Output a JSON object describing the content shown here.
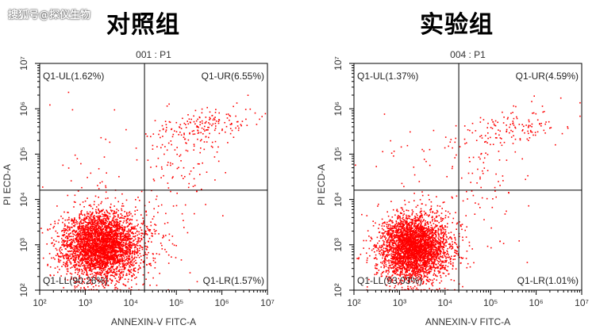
{
  "watermark": "搜狐号@探仪生物",
  "titles": {
    "left": "对照组",
    "right": "实验组"
  },
  "colors": {
    "dots": "#ff0000",
    "axis": "#000000",
    "gate": "#000000"
  },
  "chart_data": [
    {
      "type": "scatter",
      "title": "001 : P1",
      "group": "对照组",
      "xlabel": "ANNEXIN-V FITC-A",
      "ylabel": "PI ECD-A",
      "xscale": "log",
      "yscale": "log",
      "xlim": [
        100,
        10000000
      ],
      "ylim": [
        100,
        10000000
      ],
      "x_ticks": [
        "10²",
        "10³",
        "10⁴",
        "10⁵",
        "10⁶",
        "10⁷"
      ],
      "y_ticks": [
        "10²",
        "10³",
        "10⁴",
        "10⁵",
        "10⁶",
        "10⁷"
      ],
      "gate": {
        "x": 20000,
        "y": 16000
      },
      "quadrants": [
        {
          "name": "Q1-UL",
          "percent": 1.62,
          "label": "Q1-UL(1.62%)",
          "position": "top-left"
        },
        {
          "name": "Q1-UR",
          "percent": 6.55,
          "label": "Q1-UR(6.55%)",
          "position": "top-right"
        },
        {
          "name": "Q1-LL",
          "percent": 90.26,
          "label": "Q1-LL(90.26%)",
          "position": "bottom-left"
        },
        {
          "name": "Q1-LR",
          "percent": 1.57,
          "label": "Q1-LR(1.57%)",
          "position": "bottom-right"
        }
      ],
      "clusters": [
        {
          "region": "main-population",
          "center_log": [
            3.35,
            3.0
          ],
          "spread_log": [
            0.42,
            0.38
          ],
          "points": 3600
        },
        {
          "region": "late-apoptotic-band",
          "center_log": [
            5.6,
            5.65
          ],
          "spread_log": [
            0.55,
            0.18
          ],
          "points": 170
        },
        {
          "region": "upper-right-diffuse",
          "center_log": [
            5.1,
            4.8
          ],
          "spread_log": [
            0.5,
            0.5
          ],
          "points": 90
        },
        {
          "region": "upper-left",
          "center_log": [
            3.2,
            4.8
          ],
          "spread_log": [
            0.5,
            0.7
          ],
          "points": 30
        },
        {
          "region": "lower-right",
          "center_log": [
            4.7,
            3.2
          ],
          "spread_log": [
            0.4,
            0.5
          ],
          "points": 60
        }
      ],
      "seed": 11
    },
    {
      "type": "scatter",
      "title": "004 : P1",
      "group": "实验组",
      "xlabel": "ANNEXIN-V FITC-A",
      "ylabel": "PI ECD-A",
      "xscale": "log",
      "yscale": "log",
      "xlim": [
        100,
        10000000
      ],
      "ylim": [
        100,
        10000000
      ],
      "x_ticks": [
        "10²",
        "10³",
        "10⁴",
        "10⁵",
        "10⁶",
        "10⁷"
      ],
      "y_ticks": [
        "10²",
        "10³",
        "10⁴",
        "10⁵",
        "10⁶",
        "10⁷"
      ],
      "gate": {
        "x": 20000,
        "y": 16000
      },
      "quadrants": [
        {
          "name": "Q1-UL",
          "percent": 1.37,
          "label": "Q1-UL(1.37%)",
          "position": "top-left"
        },
        {
          "name": "Q1-UR",
          "percent": 4.59,
          "label": "Q1-UR(4.59%)",
          "position": "top-right"
        },
        {
          "name": "Q1-LL",
          "percent": 93.03,
          "label": "Q1-LL(93.03%)",
          "position": "bottom-left"
        },
        {
          "name": "Q1-LR",
          "percent": 1.01,
          "label": "Q1-LR(1.01%)",
          "position": "bottom-right"
        }
      ],
      "clusters": [
        {
          "region": "main-population",
          "center_log": [
            3.3,
            2.95
          ],
          "spread_log": [
            0.38,
            0.36
          ],
          "points": 3400
        },
        {
          "region": "late-apoptotic-band",
          "center_log": [
            5.4,
            5.6
          ],
          "spread_log": [
            0.6,
            0.2
          ],
          "points": 130
        },
        {
          "region": "upper-right-diffuse",
          "center_log": [
            4.9,
            4.6
          ],
          "spread_log": [
            0.5,
            0.5
          ],
          "points": 70
        },
        {
          "region": "upper-left",
          "center_log": [
            3.3,
            4.9
          ],
          "spread_log": [
            0.45,
            0.6
          ],
          "points": 26
        },
        {
          "region": "lower-right",
          "center_log": [
            4.6,
            3.3
          ],
          "spread_log": [
            0.45,
            0.5
          ],
          "points": 40
        }
      ],
      "seed": 29
    }
  ]
}
